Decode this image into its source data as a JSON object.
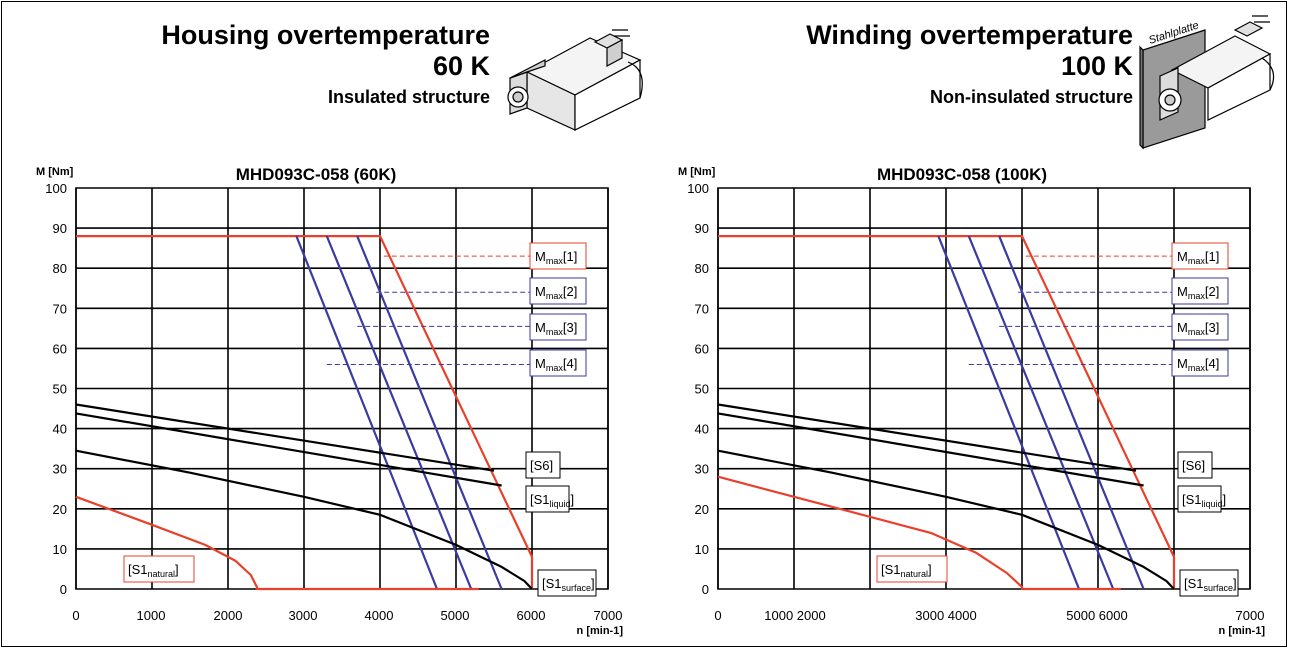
{
  "panels": [
    {
      "heading": "Housing overtemperature",
      "temp": "60 K",
      "structure": "Insulated structure",
      "image_label": ""
    },
    {
      "heading": "Winding overtemperature",
      "temp": "100 K",
      "structure": "Non-insulated structure",
      "image_label": "Stahlplatte"
    }
  ],
  "chart_data": [
    {
      "type": "line",
      "title": "MHD093C-058 (60K)",
      "ylabel": "M [Nm]",
      "xlabel": "n [min-1]",
      "xlim": [
        0,
        7000
      ],
      "ylim": [
        0,
        100
      ],
      "x_ticks": [
        "0",
        "1000",
        "2000",
        "3000",
        "4000",
        "5000",
        "6000",
        "7000"
      ],
      "y_ticks": [
        "0",
        "10",
        "20",
        "30",
        "40",
        "50",
        "60",
        "70",
        "80",
        "90",
        "100"
      ],
      "grid": true,
      "series": [
        {
          "color": "#e8402a",
          "points": [
            [
              0,
              88
            ],
            [
              4000,
              88
            ],
            [
              5500,
              28
            ],
            [
              6000,
              8
            ],
            [
              6000,
              0
            ]
          ]
        },
        {
          "color": "#3a3aa0",
          "points": [
            [
              3700,
              88
            ],
            [
              5600,
              0
            ]
          ]
        },
        {
          "color": "#3a3aa0",
          "points": [
            [
              3300,
              88
            ],
            [
              5200,
              0
            ]
          ]
        },
        {
          "color": "#3a3aa0",
          "points": [
            [
              2900,
              88
            ],
            [
              4750,
              0
            ]
          ]
        },
        {
          "color": "#000000",
          "points": [
            [
              0,
              46
            ],
            [
              5500,
              29.5
            ]
          ]
        },
        {
          "color": "#000000",
          "points": [
            [
              0,
              43.8
            ],
            [
              5600,
              25.8
            ]
          ]
        },
        {
          "color": "#000000",
          "points": [
            [
              0,
              34.5
            ],
            [
              1500,
              29
            ],
            [
              3000,
              23
            ],
            [
              4000,
              18.5
            ],
            [
              5000,
              11
            ],
            [
              5600,
              5.5
            ],
            [
              5900,
              2
            ],
            [
              6000,
              0
            ]
          ]
        },
        {
          "color": "#e8402a",
          "points": [
            [
              0,
              23
            ],
            [
              1000,
              16
            ],
            [
              1700,
              11
            ],
            [
              2100,
              7
            ],
            [
              2300,
              3.5
            ],
            [
              2380,
              0.5
            ],
            [
              2380,
              0
            ],
            [
              5300,
              0
            ]
          ]
        }
      ],
      "legend": [
        {
          "main": "M",
          "sub": "max",
          "suffix": "[1]",
          "color": "#e8402a",
          "y": 83
        },
        {
          "main": "M",
          "sub": "max",
          "suffix": "[2]",
          "color": "#3a3aa0",
          "y": 74
        },
        {
          "main": "M",
          "sub": "max",
          "suffix": "[3]",
          "color": "#3a3aa0",
          "y": 65.5
        },
        {
          "main": "M",
          "sub": "max",
          "suffix": "[4]",
          "color": "#3a3aa0",
          "y": 56
        }
      ],
      "labels": [
        {
          "main": "[S6",
          "sub": "",
          "suffix": "]",
          "color": "#000000"
        },
        {
          "main": "[S1",
          "sub": "liquid",
          "suffix": "]",
          "color": "#000000"
        },
        {
          "main": "[S1",
          "sub": "surface",
          "suffix": "]",
          "color": "#000000"
        },
        {
          "main": "[S1",
          "sub": "natural",
          "suffix": "]",
          "color": "#e8402a"
        }
      ]
    },
    {
      "type": "line",
      "title": "MHD093C-058 (100K)",
      "ylabel": "M [Nm]",
      "xlabel": "n [min-1]",
      "xlim": [
        0,
        7000
      ],
      "ylim": [
        0,
        100
      ],
      "x_ticks": [
        "0",
        "1000 2000",
        "3000 4000",
        "5000 6000",
        "7000"
      ],
      "y_ticks": [
        "0",
        "10",
        "20",
        "30",
        "40",
        "50",
        "60",
        "70",
        "80",
        "90",
        "100"
      ],
      "grid": true,
      "series": [
        {
          "color": "#e8402a",
          "points": [
            [
              0,
              88
            ],
            [
              4000,
              88
            ],
            [
              5500,
              28
            ],
            [
              6000,
              8
            ],
            [
              6000,
              0
            ]
          ]
        },
        {
          "color": "#3a3aa0",
          "points": [
            [
              3700,
              88
            ],
            [
              5600,
              0
            ]
          ]
        },
        {
          "color": "#3a3aa0",
          "points": [
            [
              3300,
              88
            ],
            [
              5200,
              0
            ]
          ]
        },
        {
          "color": "#3a3aa0",
          "points": [
            [
              2900,
              88
            ],
            [
              4750,
              0
            ]
          ]
        },
        {
          "color": "#000000",
          "points": [
            [
              0,
              46
            ],
            [
              5500,
              29.5
            ]
          ]
        },
        {
          "color": "#000000",
          "points": [
            [
              0,
              43.8
            ],
            [
              5600,
              25.8
            ]
          ]
        },
        {
          "color": "#000000",
          "points": [
            [
              0,
              34.5
            ],
            [
              1500,
              29
            ],
            [
              3000,
              23
            ],
            [
              4000,
              18.5
            ],
            [
              5000,
              11
            ],
            [
              5600,
              5.5
            ],
            [
              5900,
              2
            ],
            [
              6000,
              0
            ]
          ]
        },
        {
          "color": "#e8402a",
          "points": [
            [
              0,
              28
            ],
            [
              800,
              24
            ],
            [
              1800,
              19
            ],
            [
              2800,
              14
            ],
            [
              3400,
              9
            ],
            [
              3800,
              4
            ],
            [
              4000,
              0.5
            ],
            [
              4000,
              0
            ],
            [
              5300,
              0
            ]
          ]
        }
      ],
      "legend": [
        {
          "main": "M",
          "sub": "max",
          "suffix": "[1]",
          "color": "#e8402a",
          "y": 83
        },
        {
          "main": "M",
          "sub": "max",
          "suffix": "[2]",
          "color": "#3a3aa0",
          "y": 74
        },
        {
          "main": "M",
          "sub": "max",
          "suffix": "[3]",
          "color": "#3a3aa0",
          "y": 65.5
        },
        {
          "main": "M",
          "sub": "max",
          "suffix": "[4]",
          "color": "#3a3aa0",
          "y": 56
        }
      ],
      "labels": [
        {
          "main": "[S6",
          "sub": "",
          "suffix": "]",
          "color": "#000000"
        },
        {
          "main": "[S1",
          "sub": "liquid",
          "suffix": "]",
          "color": "#000000"
        },
        {
          "main": "[S1",
          "sub": "surface",
          "suffix": "]",
          "color": "#000000"
        },
        {
          "main": "[S1",
          "sub": "natural",
          "suffix": "]",
          "color": "#e8402a"
        }
      ]
    }
  ]
}
